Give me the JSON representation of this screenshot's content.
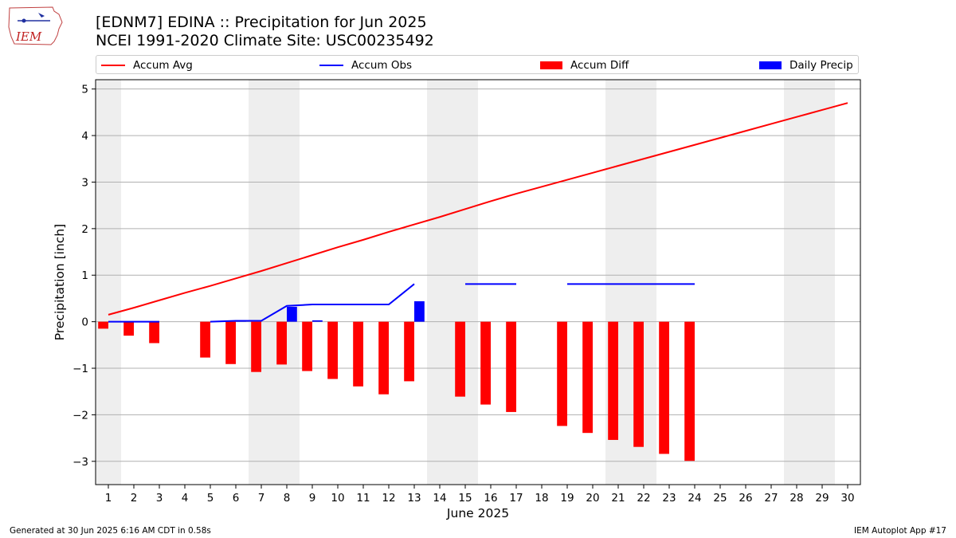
{
  "header": {
    "title_line1": "[EDNM7] EDINA :: Precipitation for Jun 2025",
    "title_line2": "NCEI 1991-2020 Climate Site: USC00235492"
  },
  "logo": {
    "text": "IEM",
    "icon": "iem-iowa-logo"
  },
  "footer": {
    "left": "Generated at 30 Jun 2025 6:16 AM CDT in 0.58s",
    "right": "IEM Autoplot App #17"
  },
  "colors": {
    "avg": "#ff0000",
    "obs": "#0000ff",
    "diff": "#ff0000",
    "daily": "#0000ff",
    "weekend": "#eeeeee",
    "grid": "#b0b0b0"
  },
  "chart_data": {
    "type": "bar",
    "xlabel": "June 2025",
    "ylabel": "Precipitation [inch]",
    "ylim": [
      -3.5,
      5.2
    ],
    "xlim": [
      0.5,
      30.5
    ],
    "yticks": [
      -3,
      -2,
      -1,
      0,
      1,
      2,
      3,
      4,
      5
    ],
    "ytick_labels": [
      "−3",
      "−2",
      "−1",
      "0",
      "1",
      "2",
      "3",
      "4",
      "5"
    ],
    "x": [
      1,
      2,
      3,
      4,
      5,
      6,
      7,
      8,
      9,
      10,
      11,
      12,
      13,
      14,
      15,
      16,
      17,
      18,
      19,
      20,
      21,
      22,
      23,
      24,
      25,
      26,
      27,
      28,
      29,
      30
    ],
    "xtick_labels": [
      "1",
      "2",
      "3",
      "4",
      "5",
      "6",
      "7",
      "8",
      "9",
      "10",
      "11",
      "12",
      "13",
      "14",
      "15",
      "16",
      "17",
      "18",
      "19",
      "20",
      "21",
      "22",
      "23",
      "24",
      "25",
      "26",
      "27",
      "28",
      "29",
      "30"
    ],
    "grid": "horizontal",
    "legend_position": "top",
    "weekend_shading": [
      [
        0.5,
        1.5
      ],
      [
        6.5,
        8.5
      ],
      [
        13.5,
        15.5
      ],
      [
        20.5,
        22.5
      ],
      [
        27.5,
        29.5
      ]
    ],
    "series": [
      {
        "name": "Accum Avg",
        "type": "line",
        "color": "#ff0000",
        "values": [
          0.15,
          0.3,
          0.46,
          0.62,
          0.77,
          0.93,
          1.09,
          1.26,
          1.43,
          1.6,
          1.76,
          1.93,
          2.09,
          2.25,
          2.42,
          2.59,
          2.75,
          2.9,
          3.05,
          3.2,
          3.35,
          3.5,
          3.65,
          3.8,
          3.95,
          4.1,
          4.25,
          4.4,
          4.55,
          4.7
        ]
      },
      {
        "name": "Accum Obs",
        "type": "line",
        "color": "#0000ff",
        "values": [
          0.0,
          0.0,
          0.0,
          null,
          0.0,
          0.02,
          0.02,
          0.34,
          0.37,
          0.37,
          0.37,
          0.37,
          0.81,
          null,
          0.81,
          0.81,
          0.81,
          null,
          0.81,
          0.81,
          0.81,
          0.81,
          0.81,
          0.81,
          null,
          null,
          null,
          null,
          null,
          null
        ]
      },
      {
        "name": "Accum Diff",
        "type": "bar",
        "color": "#ff0000",
        "values": [
          -0.15,
          -0.3,
          -0.46,
          null,
          -0.77,
          -0.91,
          -1.08,
          -0.92,
          -1.06,
          -1.23,
          -1.39,
          -1.56,
          -1.28,
          null,
          -1.61,
          -1.78,
          -1.94,
          null,
          -2.24,
          -2.39,
          -2.54,
          -2.69,
          -2.84,
          -2.99,
          null,
          null,
          null,
          null,
          null,
          null
        ]
      },
      {
        "name": "Daily Precip",
        "type": "bar",
        "color": "#0000ff",
        "values": [
          0.0,
          0.0,
          0.0,
          null,
          0.0,
          0.02,
          0.0,
          0.32,
          0.03,
          0.0,
          0.0,
          0.0,
          0.44,
          null,
          0.0,
          0.0,
          0.0,
          null,
          0.0,
          0.0,
          0.0,
          0.0,
          0.0,
          0.0,
          null,
          null,
          null,
          null,
          null,
          null
        ]
      }
    ]
  }
}
